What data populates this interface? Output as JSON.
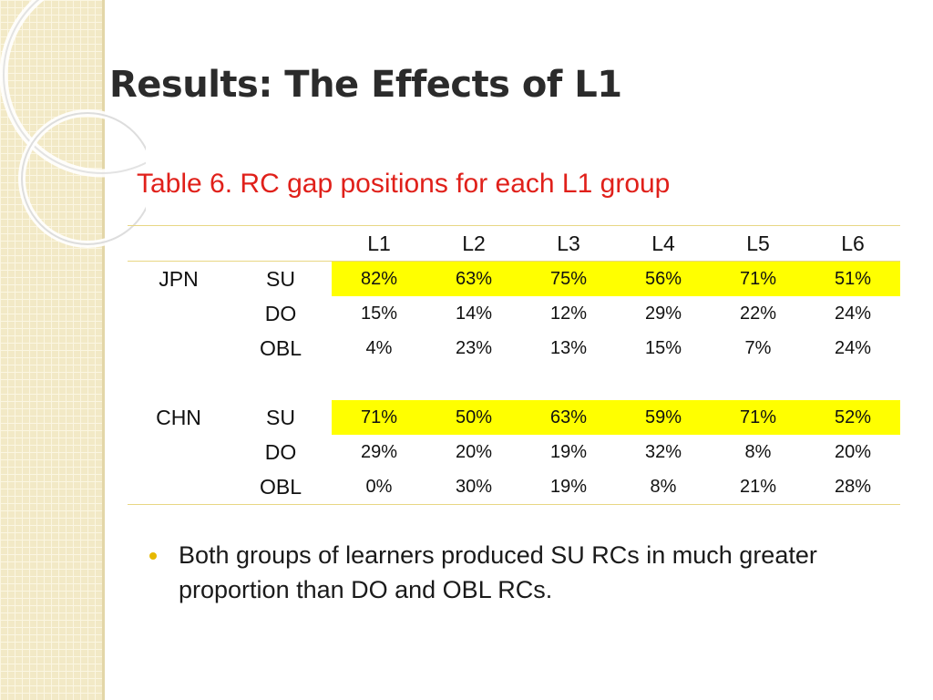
{
  "slide": {
    "title": "Results: The Effects of L1",
    "caption": "Table 6. RC gap positions for each L1 group"
  },
  "table": {
    "columns": [
      "L1",
      "L2",
      "L3",
      "L4",
      "L5",
      "L6"
    ],
    "groups": [
      {
        "name": "JPN",
        "rows": [
          {
            "position": "SU",
            "values": [
              "82%",
              "63%",
              "75%",
              "56%",
              "71%",
              "51%"
            ],
            "highlighted": true
          },
          {
            "position": "DO",
            "values": [
              "15%",
              "14%",
              "12%",
              "29%",
              "22%",
              "24%"
            ],
            "highlighted": false
          },
          {
            "position": "OBL",
            "values": [
              "4%",
              "23%",
              "13%",
              "15%",
              "7%",
              "24%"
            ],
            "highlighted": false
          }
        ]
      },
      {
        "name": "CHN",
        "rows": [
          {
            "position": "SU",
            "values": [
              "71%",
              "50%",
              "63%",
              "59%",
              "71%",
              "52%"
            ],
            "highlighted": true
          },
          {
            "position": "DO",
            "values": [
              "29%",
              "20%",
              "19%",
              "32%",
              "8%",
              "20%"
            ],
            "highlighted": false
          },
          {
            "position": "OBL",
            "values": [
              "0%",
              "30%",
              "19%",
              "8%",
              "21%",
              "28%"
            ],
            "highlighted": false
          }
        ]
      }
    ],
    "highlight_color": "#ffff00"
  },
  "bullets": [
    "Both groups of learners produced SU RCs in much greater proportion than DO and OBL RCs."
  ],
  "colors": {
    "caption": "#e0201a",
    "sidebar": "#f2e9c6",
    "rule": "#e8d784",
    "bullet": "#e6b800"
  }
}
